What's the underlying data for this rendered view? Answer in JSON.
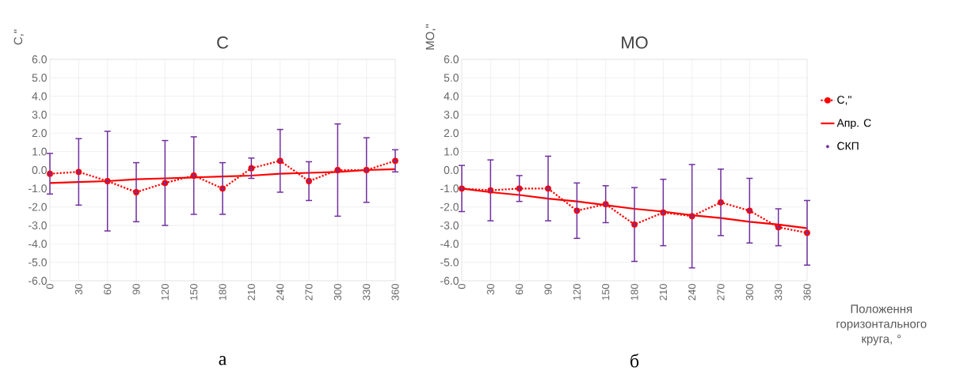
{
  "chart_data": [
    {
      "type": "line",
      "title": "С",
      "ylabel": "С,\"",
      "annotations": [
        "а"
      ],
      "x": [
        0,
        30,
        60,
        90,
        120,
        150,
        180,
        210,
        240,
        270,
        300,
        330,
        360
      ],
      "xlim": [
        0,
        360
      ],
      "xticks": [
        0,
        30,
        60,
        90,
        120,
        150,
        180,
        210,
        240,
        270,
        300,
        330,
        360
      ],
      "ylim": [
        -6,
        6
      ],
      "yticks": [
        {
          "value": 6,
          "label": "6.0"
        },
        {
          "value": 5,
          "label": "5.0"
        },
        {
          "value": 4,
          "label": "4.0"
        },
        {
          "value": 3,
          "label": "3.0"
        },
        {
          "value": 2,
          "label": "2.0"
        },
        {
          "value": 1,
          "label": "1.0"
        },
        {
          "value": 0,
          "label": "0.0"
        },
        {
          "value": -1,
          "label": "-1.0"
        },
        {
          "value": -2,
          "label": "-2.0"
        },
        {
          "value": -3,
          "label": "-3.0"
        },
        {
          "value": -4,
          "label": "-4.0"
        },
        {
          "value": -5,
          "label": "-5.0"
        },
        {
          "value": -6,
          "label": "-6.0"
        }
      ],
      "grid": true,
      "legend": false,
      "series": [
        {
          "type": "line",
          "color": "#ff0000",
          "marker": "circle",
          "line_style": "dotted",
          "values": [
            -0.2,
            -0.1,
            -0.6,
            -1.2,
            -0.7,
            -0.3,
            -1.0,
            0.1,
            0.5,
            -0.6,
            0.0,
            0.0,
            0.5
          ]
        },
        {
          "type": "line",
          "color": "#ff0000",
          "marker": "none",
          "line_style": "solid",
          "values": [
            -0.7,
            -0.65,
            -0.6,
            -0.5,
            -0.45,
            -0.4,
            -0.35,
            -0.3,
            -0.2,
            -0.15,
            -0.1,
            0.0,
            0.05
          ]
        },
        {
          "type": "scatter",
          "color": "#7030a0",
          "marker": "circle",
          "values": [
            -0.2,
            -0.1,
            -0.6,
            -1.2,
            -0.7,
            -0.3,
            -1.0,
            0.1,
            0.5,
            -0.6,
            0.0,
            0.0,
            0.5
          ],
          "errors": [
            1.1,
            1.8,
            2.7,
            1.6,
            2.3,
            2.1,
            1.4,
            0.55,
            1.7,
            1.05,
            2.5,
            1.75,
            0.6
          ]
        }
      ]
    },
    {
      "type": "line",
      "title": "МО",
      "ylabel": "МО,\"",
      "xlabel": "Положення горизонтального круга, °",
      "annotations": [
        "б"
      ],
      "x": [
        0,
        30,
        60,
        90,
        120,
        150,
        180,
        210,
        240,
        270,
        300,
        330,
        360
      ],
      "xlim": [
        0,
        360
      ],
      "xticks": [
        0,
        30,
        60,
        90,
        120,
        150,
        180,
        210,
        240,
        270,
        300,
        330,
        360
      ],
      "ylim": [
        -6,
        6
      ],
      "yticks": [
        {
          "value": 6,
          "label": "6.0"
        },
        {
          "value": 5,
          "label": "5.0"
        },
        {
          "value": 4,
          "label": "4.0"
        },
        {
          "value": 3,
          "label": "3.0"
        },
        {
          "value": 2,
          "label": "2.0"
        },
        {
          "value": 1,
          "label": "1.0"
        },
        {
          "value": 0,
          "label": "0.0"
        },
        {
          "value": -1,
          "label": "-1.0"
        },
        {
          "value": -2,
          "label": "-2.0"
        },
        {
          "value": -3,
          "label": "-3.0"
        },
        {
          "value": -4,
          "label": "-4.0"
        },
        {
          "value": -5,
          "label": "-5.0"
        },
        {
          "value": -6,
          "label": "-6.0"
        }
      ],
      "grid": true,
      "legend": "right",
      "series": [
        {
          "type": "line",
          "name": "С,\"",
          "color": "#ff0000",
          "marker": "circle",
          "line_style": "dotted",
          "values": [
            -1.0,
            -1.1,
            -1.0,
            -1.0,
            -2.2,
            -1.85,
            -2.95,
            -2.3,
            -2.5,
            -1.75,
            -2.2,
            -3.1,
            -3.4
          ]
        },
        {
          "type": "line",
          "name": "Апр. С",
          "color": "#ff0000",
          "marker": "none",
          "line_style": "solid",
          "values": [
            -1.0,
            -1.2,
            -1.35,
            -1.55,
            -1.7,
            -1.9,
            -2.1,
            -2.25,
            -2.45,
            -2.6,
            -2.8,
            -2.95,
            -3.15
          ]
        },
        {
          "type": "scatter",
          "name": "СКП",
          "color": "#7030a0",
          "marker": "circle",
          "values": [
            -1.0,
            -1.1,
            -1.0,
            -1.0,
            -2.2,
            -1.85,
            -2.95,
            -2.3,
            -2.5,
            -1.75,
            -2.2,
            -3.1,
            -3.4
          ],
          "errors": [
            1.25,
            1.65,
            0.7,
            1.75,
            1.5,
            1.0,
            2.0,
            1.8,
            2.8,
            1.8,
            1.75,
            1.0,
            1.75
          ]
        }
      ]
    }
  ]
}
